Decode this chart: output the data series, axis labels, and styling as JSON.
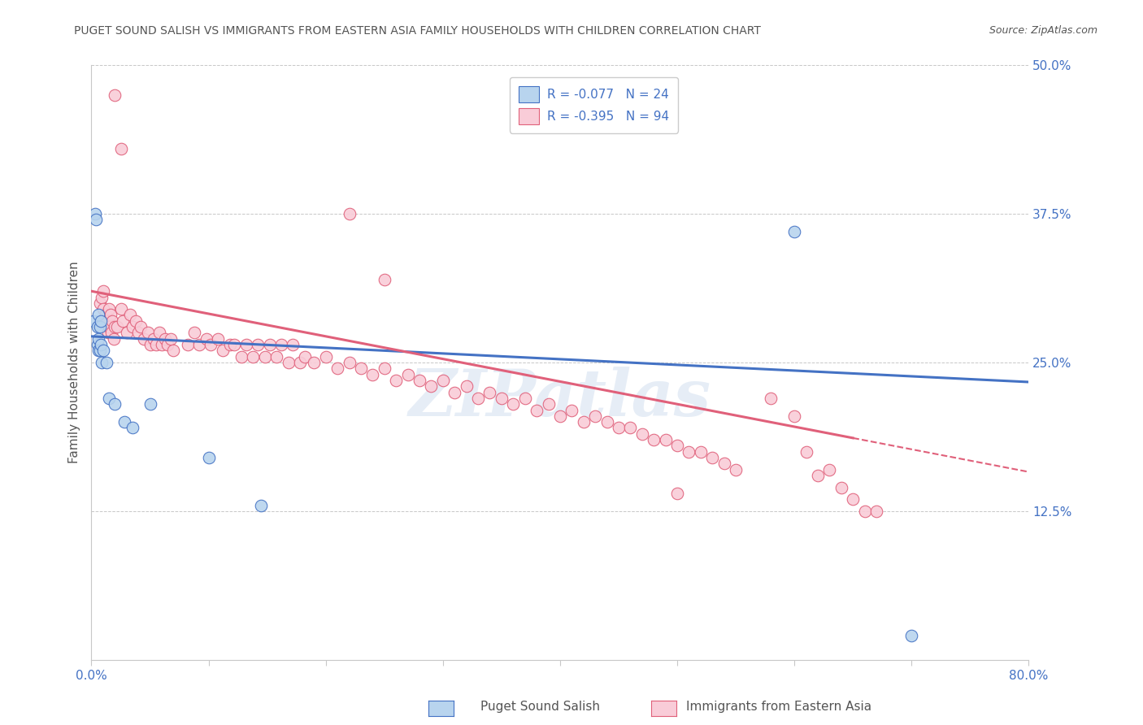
{
  "title": "PUGET SOUND SALISH VS IMMIGRANTS FROM EASTERN ASIA FAMILY HOUSEHOLDS WITH CHILDREN CORRELATION CHART",
  "source": "Source: ZipAtlas.com",
  "ylabel": "Family Households with Children",
  "xlim": [
    0.0,
    0.8
  ],
  "ylim": [
    0.0,
    0.5
  ],
  "yticks": [
    0.0,
    0.125,
    0.25,
    0.375,
    0.5
  ],
  "xtick_positions": [
    0.0,
    0.1,
    0.2,
    0.3,
    0.4,
    0.5,
    0.6,
    0.7,
    0.8
  ],
  "group1_label": "Puget Sound Salish",
  "group2_label": "Immigrants from Eastern Asia",
  "R1": -0.077,
  "N1": 24,
  "R2": -0.395,
  "N2": 94,
  "color1_face": "#b8d4ee",
  "color1_edge": "#4472C4",
  "color2_face": "#f9ccd8",
  "color2_edge": "#E0607A",
  "line1_color": "#4472C4",
  "line2_color": "#E0607A",
  "background_color": "#ffffff",
  "grid_color": "#c8c8c8",
  "axis_label_color": "#4472C4",
  "title_color": "#555555",
  "watermark": "ZIPatlas",
  "line1_intercept": 0.272,
  "line1_slope": -0.048,
  "line2_intercept": 0.31,
  "line2_slope": -0.19,
  "line2_solid_end": 0.65,
  "group1_x": [
    0.002,
    0.003,
    0.004,
    0.004,
    0.005,
    0.005,
    0.006,
    0.006,
    0.007,
    0.007,
    0.008,
    0.008,
    0.009,
    0.01,
    0.012,
    0.015,
    0.018,
    0.025,
    0.03,
    0.04,
    0.05,
    0.1,
    0.6,
    0.7
  ],
  "group1_y": [
    0.285,
    0.375,
    0.37,
    0.295,
    0.28,
    0.265,
    0.29,
    0.27,
    0.28,
    0.26,
    0.285,
    0.27,
    0.25,
    0.26,
    0.25,
    0.22,
    0.2,
    0.22,
    0.17,
    0.215,
    0.25,
    0.165,
    0.36,
    0.02
  ],
  "group2_x": [
    0.02,
    0.025,
    0.03,
    0.035,
    0.04,
    0.045,
    0.05,
    0.055,
    0.06,
    0.065,
    0.07,
    0.075,
    0.08,
    0.09,
    0.095,
    0.1,
    0.105,
    0.11,
    0.115,
    0.12,
    0.125,
    0.13,
    0.135,
    0.14,
    0.145,
    0.15,
    0.155,
    0.16,
    0.165,
    0.17,
    0.18,
    0.19,
    0.2,
    0.21,
    0.22,
    0.23,
    0.24,
    0.25,
    0.26,
    0.27,
    0.28,
    0.29,
    0.3,
    0.31,
    0.32,
    0.33,
    0.34,
    0.35,
    0.36,
    0.37,
    0.38,
    0.39,
    0.4,
    0.41,
    0.42,
    0.43,
    0.44,
    0.45,
    0.46,
    0.47,
    0.48,
    0.49,
    0.5,
    0.51,
    0.52,
    0.53,
    0.54,
    0.55,
    0.56,
    0.57,
    0.58,
    0.59,
    0.6,
    0.61,
    0.62,
    0.63,
    0.64,
    0.65,
    0.01,
    0.015,
    0.007,
    0.008,
    0.009,
    0.01,
    0.011,
    0.012,
    0.013,
    0.014,
    0.015,
    0.016,
    0.017,
    0.018,
    0.019,
    0.02
  ],
  "group2_y": [
    0.295,
    0.29,
    0.27,
    0.28,
    0.265,
    0.275,
    0.26,
    0.265,
    0.27,
    0.275,
    0.265,
    0.28,
    0.255,
    0.27,
    0.265,
    0.26,
    0.275,
    0.265,
    0.255,
    0.27,
    0.26,
    0.265,
    0.255,
    0.265,
    0.255,
    0.26,
    0.25,
    0.255,
    0.245,
    0.255,
    0.24,
    0.25,
    0.245,
    0.24,
    0.235,
    0.23,
    0.235,
    0.23,
    0.225,
    0.22,
    0.225,
    0.215,
    0.22,
    0.215,
    0.21,
    0.205,
    0.21,
    0.205,
    0.2,
    0.205,
    0.195,
    0.2,
    0.195,
    0.19,
    0.195,
    0.185,
    0.19,
    0.185,
    0.18,
    0.185,
    0.175,
    0.18,
    0.175,
    0.17,
    0.175,
    0.165,
    0.17,
    0.16,
    0.165,
    0.155,
    0.16,
    0.15,
    0.155,
    0.145,
    0.15,
    0.14,
    0.145,
    0.135,
    0.285,
    0.275,
    0.31,
    0.3,
    0.29,
    0.275,
    0.28,
    0.27,
    0.265,
    0.275,
    0.26,
    0.27,
    0.255,
    0.26,
    0.25,
    0.24
  ]
}
